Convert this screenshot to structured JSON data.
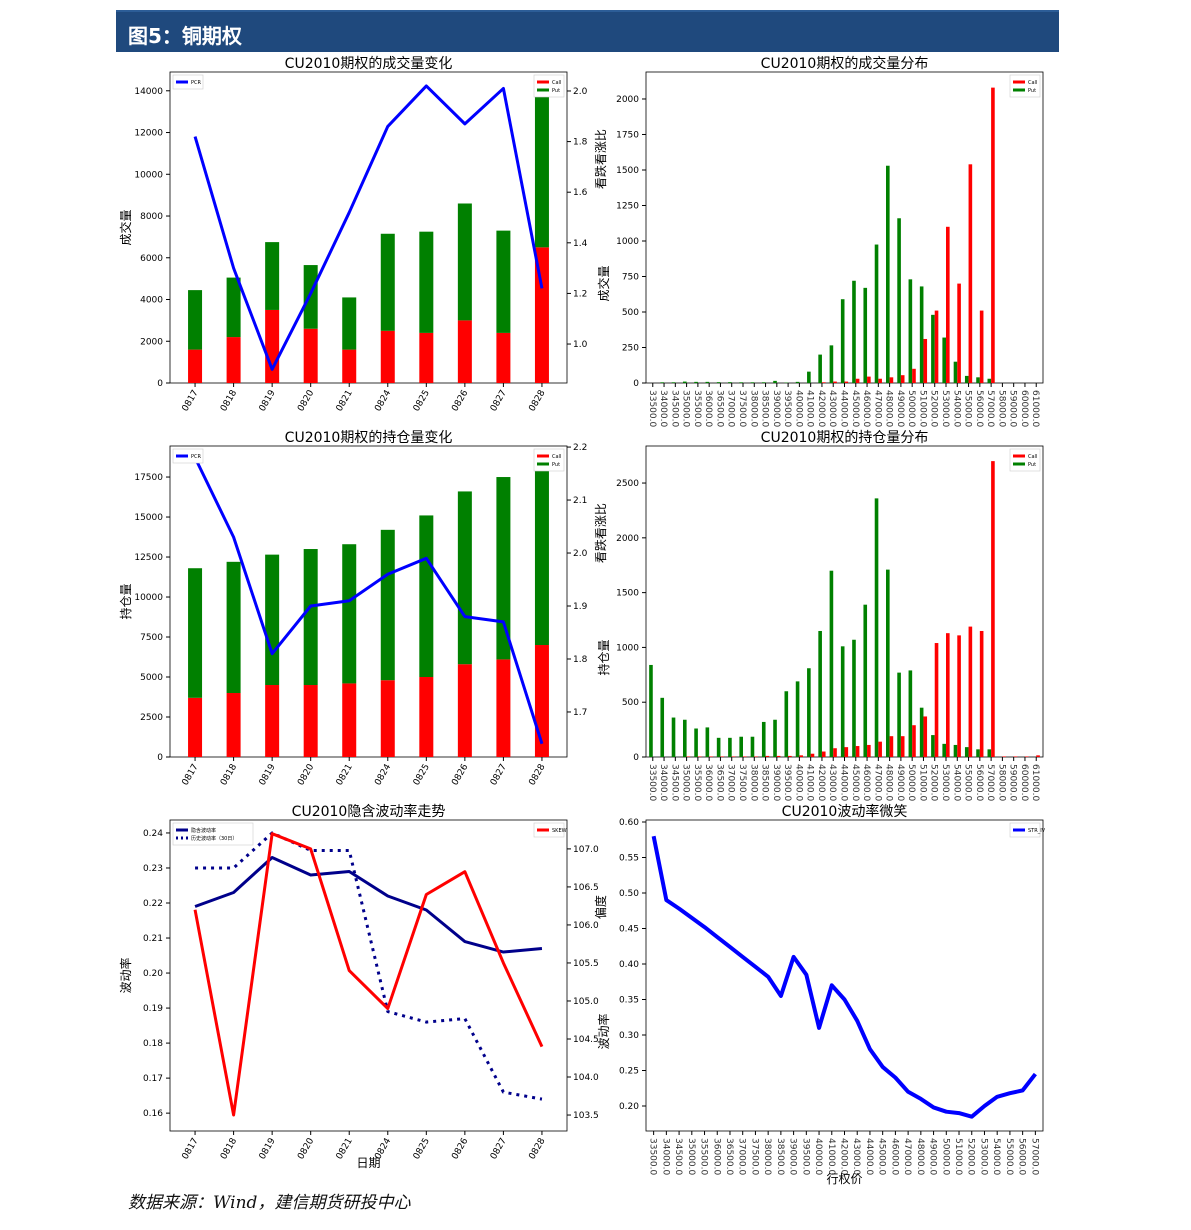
{
  "header": {
    "title": "图5：铜期权"
  },
  "source": "数据来源：Wind，建信期货研投中心",
  "colors": {
    "call": "#ff0000",
    "put": "#008000",
    "pcr": "#0000ff",
    "iv": "#00008b",
    "hv": "#00008b",
    "skew": "#ff0000",
    "smile": "#0000ff"
  },
  "chart_data": [
    {
      "type": "bar",
      "title": "CU2010期权的成交量变化",
      "ylabel": "成交量",
      "y2label": "看跌看涨比",
      "categories": [
        "0817",
        "0818",
        "0819",
        "0820",
        "0821",
        "0824",
        "0825",
        "0826",
        "0827",
        "0828"
      ],
      "ylim": [
        0,
        14900
      ],
      "yticks": [
        0,
        2000,
        4000,
        6000,
        8000,
        10000,
        12000,
        14000
      ],
      "y2lim": [
        0.846,
        2.075
      ],
      "y2ticks": [
        "1.0",
        "1.2",
        "1.4",
        "1.6",
        "1.8",
        "2.0"
      ],
      "legend_left": [
        "PCR"
      ],
      "legend_right": [
        "Call",
        "Put"
      ],
      "series": [
        {
          "name": "Call",
          "values": [
            1600,
            2200,
            3500,
            2600,
            1600,
            2500,
            2400,
            3000,
            2400,
            6500
          ]
        },
        {
          "name": "Put",
          "values": [
            2850,
            2850,
            3250,
            3050,
            2500,
            4650,
            4850,
            5600,
            4900,
            7500
          ]
        },
        {
          "name": "PCR",
          "values": [
            1.82,
            1.3,
            0.9,
            1.2,
            1.52,
            1.86,
            2.02,
            1.87,
            2.01,
            1.22
          ]
        }
      ]
    },
    {
      "type": "bar",
      "title": "CU2010期权的成交量分布",
      "ylabel": "成交量",
      "categories": [
        "33500.0",
        "34000.0",
        "34500.0",
        "35000.0",
        "35500.0",
        "36000.0",
        "36500.0",
        "37000.0",
        "37500.0",
        "38000.0",
        "38500.0",
        "39000.0",
        "39500.0",
        "40000.0",
        "41000.0",
        "42000.0",
        "43000.0",
        "44000.0",
        "45000.0",
        "46000.0",
        "47000.0",
        "48000.0",
        "49000.0",
        "50000.0",
        "51000.0",
        "52000.0",
        "53000.0",
        "54000.0",
        "55000.0",
        "56000.0",
        "57000.0",
        "58000.0",
        "59000.0",
        "60000.0",
        "61000.0"
      ],
      "ylim": [
        0,
        2190
      ],
      "yticks": [
        0,
        250,
        500,
        750,
        1000,
        1250,
        1500,
        1750,
        2000
      ],
      "legend_right": [
        "Call",
        "Put"
      ],
      "series": [
        {
          "name": "Call",
          "values": [
            0,
            0,
            0,
            0,
            0,
            0,
            0,
            0,
            0,
            0,
            0,
            0,
            0,
            0,
            0,
            5,
            10,
            10,
            30,
            45,
            30,
            40,
            55,
            100,
            310,
            510,
            1100,
            700,
            1540,
            510,
            2080,
            0,
            0,
            0,
            0
          ]
        },
        {
          "name": "Put",
          "values": [
            0,
            5,
            5,
            10,
            8,
            8,
            6,
            6,
            5,
            5,
            5,
            15,
            3,
            8,
            80,
            200,
            265,
            590,
            720,
            670,
            975,
            1530,
            1160,
            730,
            680,
            480,
            320,
            150,
            50,
            40,
            30,
            0,
            0,
            0,
            0
          ]
        }
      ]
    },
    {
      "type": "bar",
      "title": "CU2010期权的持仓量变化",
      "ylabel": "持仓量",
      "y2label": "看跌看涨比",
      "categories": [
        "0817",
        "0818",
        "0819",
        "0820",
        "0821",
        "0824",
        "0825",
        "0826",
        "0827",
        "0828"
      ],
      "ylim": [
        0,
        19440
      ],
      "yticks": [
        0,
        2500,
        5000,
        7500,
        10000,
        12500,
        15000,
        17500
      ],
      "y2lim": [
        1.615,
        2.202
      ],
      "y2ticks": [
        "1.7",
        "1.8",
        "1.9",
        "2.0",
        "2.1",
        "2.2"
      ],
      "legend_left": [
        "PCR"
      ],
      "legend_right": [
        "Call",
        "Put"
      ],
      "series": [
        {
          "name": "Call",
          "values": [
            3700,
            4000,
            4500,
            4500,
            4600,
            4800,
            5000,
            5800,
            6100,
            7000
          ]
        },
        {
          "name": "Put",
          "values": [
            8100,
            8200,
            8150,
            8500,
            8700,
            9400,
            10100,
            10800,
            11400,
            11300
          ]
        },
        {
          "name": "PCR",
          "values": [
            2.18,
            2.03,
            1.81,
            1.9,
            1.91,
            1.96,
            1.99,
            1.88,
            1.87,
            1.64
          ]
        }
      ]
    },
    {
      "type": "bar",
      "title": "CU2010期权的持仓量分布",
      "ylabel": "持仓量",
      "categories": [
        "33500.0",
        "34000.0",
        "34500.0",
        "35000.0",
        "35500.0",
        "36000.0",
        "36500.0",
        "37000.0",
        "37500.0",
        "38000.0",
        "38500.0",
        "39000.0",
        "39500.0",
        "40000.0",
        "41000.0",
        "42000.0",
        "43000.0",
        "44000.0",
        "45000.0",
        "46000.0",
        "47000.0",
        "48000.0",
        "49000.0",
        "50000.0",
        "51000.0",
        "52000.0",
        "53000.0",
        "54000.0",
        "55000.0",
        "56000.0",
        "57000.0",
        "58000.0",
        "59000.0",
        "60000.0",
        "61000.0"
      ],
      "ylim": [
        0,
        2838
      ],
      "yticks": [
        0,
        500,
        1000,
        1500,
        2000,
        2500
      ],
      "legend_right": [
        "Call",
        "Put"
      ],
      "series": [
        {
          "name": "Call",
          "values": [
            0,
            0,
            0,
            5,
            5,
            5,
            5,
            5,
            5,
            5,
            10,
            10,
            10,
            15,
            30,
            50,
            80,
            90,
            100,
            110,
            140,
            190,
            190,
            290,
            370,
            1040,
            1130,
            1110,
            1190,
            1150,
            2700,
            5,
            5,
            5,
            15
          ]
        },
        {
          "name": "Put",
          "values": [
            840,
            540,
            360,
            340,
            260,
            270,
            175,
            175,
            185,
            185,
            320,
            340,
            600,
            690,
            810,
            1150,
            1700,
            1010,
            1070,
            1390,
            2360,
            1710,
            770,
            790,
            450,
            200,
            120,
            110,
            90,
            70,
            70,
            0,
            0,
            0,
            0
          ]
        }
      ]
    },
    {
      "type": "line",
      "title": "CU2010隐含波动率走势",
      "ylabel": "波动率",
      "y2label": "偏度",
      "xlabel": "日期",
      "categories": [
        "0817",
        "0818",
        "0819",
        "0820",
        "0821",
        "0824",
        "0825",
        "0826",
        "0827",
        "0828"
      ],
      "ylim": [
        0.1549,
        0.2437
      ],
      "yticks": [
        "0.16",
        "0.17",
        "0.18",
        "0.19",
        "0.20",
        "0.21",
        "0.22",
        "0.23",
        "0.24"
      ],
      "y2lim": [
        103.29,
        107.38
      ],
      "y2ticks": [
        "103.5",
        "104.0",
        "104.5",
        "105.0",
        "105.5",
        "106.0",
        "106.5",
        "107.0"
      ],
      "legend_left": [
        "隐含波动率",
        "历史波动率（30日）"
      ],
      "legend_right": [
        "SKEW"
      ],
      "series": [
        {
          "name": "隐含波动率",
          "values": [
            0.219,
            0.223,
            0.233,
            0.228,
            0.229,
            0.222,
            0.218,
            0.209,
            0.206,
            0.207
          ]
        },
        {
          "name": "历史波动率（30日）",
          "values": [
            0.23,
            0.23,
            0.24,
            0.235,
            0.235,
            0.189,
            0.186,
            0.187,
            0.166,
            0.164
          ]
        },
        {
          "name": "SKEW",
          "values": [
            106.2,
            103.5,
            107.2,
            107.0,
            105.4,
            104.9,
            106.4,
            106.7,
            105.5,
            104.4
          ]
        }
      ]
    },
    {
      "type": "line",
      "title": "CU2010波动率微笑",
      "ylabel": "波动率",
      "xlabel": "行权价",
      "categories": [
        "33500.0",
        "34000.0",
        "34500.0",
        "35000.0",
        "35500.0",
        "36000.0",
        "36500.0",
        "37000.0",
        "37500.0",
        "38000.0",
        "38500.0",
        "39000.0",
        "39500.0",
        "40000.0",
        "41000.0",
        "42000.0",
        "43000.0",
        "44000.0",
        "45000.0",
        "46000.0",
        "47000.0",
        "48000.0",
        "49000.0",
        "50000.0",
        "51000.0",
        "52000.0",
        "53000.0",
        "54000.0",
        "55000.0",
        "56000.0",
        "57000.0"
      ],
      "ylim": [
        0.1648,
        0.6028
      ],
      "yticks": [
        "0.20",
        "0.25",
        "0.30",
        "0.35",
        "0.40",
        "0.45",
        "0.50",
        "0.55",
        "0.60"
      ],
      "legend_right": [
        "STR_IV"
      ],
      "series": [
        {
          "name": "STR_IV",
          "values": [
            0.58,
            0.49,
            0.478,
            0.465,
            0.452,
            0.438,
            0.424,
            0.41,
            0.396,
            0.382,
            0.355,
            0.41,
            0.385,
            0.31,
            0.37,
            0.35,
            0.32,
            0.28,
            0.255,
            0.24,
            0.22,
            0.21,
            0.198,
            0.192,
            0.19,
            0.185,
            0.2,
            0.213,
            0.218,
            0.222,
            0.245
          ]
        }
      ]
    }
  ]
}
